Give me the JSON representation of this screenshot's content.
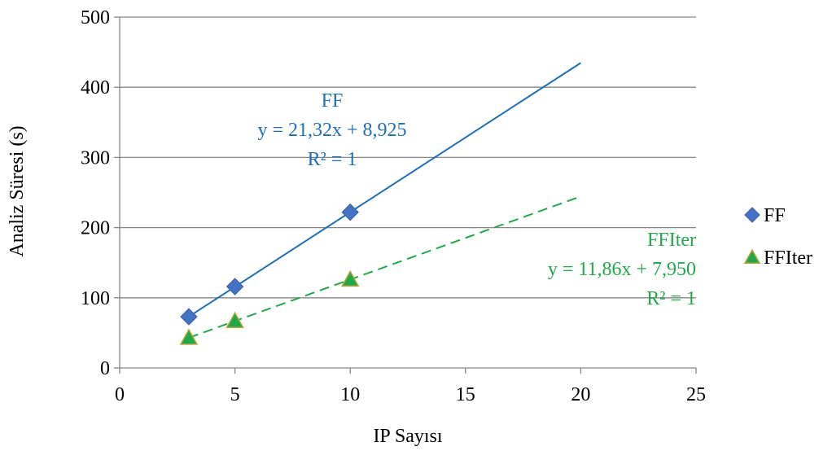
{
  "chart_data": {
    "type": "scatter",
    "xlabel": "IP Sayısı",
    "ylabel": "Analiz Süresi (s)",
    "xlim": [
      0,
      25
    ],
    "ylim": [
      0,
      500
    ],
    "x_ticks": [
      "0",
      "5",
      "10",
      "15",
      "20",
      "25"
    ],
    "y_ticks": [
      "0",
      "100",
      "200",
      "300",
      "400",
      "500"
    ],
    "grid": "horizontal",
    "legend_position": "right",
    "series": [
      {
        "name": "FF",
        "marker": "diamond",
        "color": "#4472C4",
        "x": [
          3,
          5,
          10
        ],
        "y": [
          73,
          116,
          222
        ],
        "trendline": {
          "style": "solid",
          "color": "#1F6FB8",
          "x_range": [
            3,
            20
          ],
          "label_lines": [
            "FF",
            "y = 21,32x + 8,925",
            "R² = 1"
          ]
        }
      },
      {
        "name": "FFIter",
        "marker": "triangle",
        "color": "#22A84A",
        "x": [
          3,
          5,
          10
        ],
        "y": [
          43,
          67,
          126
        ],
        "trendline": {
          "style": "dashed",
          "color": "#22A84A",
          "x_range": [
            3,
            20
          ],
          "label_lines": [
            "FFIter",
            "y = 11,86x + 7,950",
            "R² = 1"
          ]
        }
      }
    ]
  }
}
